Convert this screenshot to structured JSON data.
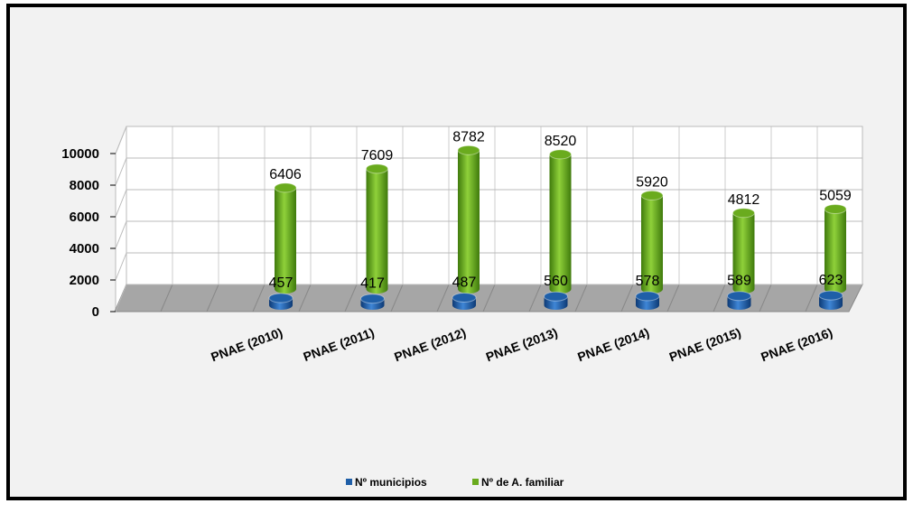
{
  "chart_data": {
    "type": "bar3d",
    "categories": [
      "PNAE (2010)",
      "PNAE (2011)",
      "PNAE (2012)",
      "PNAE (2013)",
      "PNAE (2014)",
      "PNAE (2015)",
      "PNAE (2016)"
    ],
    "series": [
      {
        "name": "Nº municipios",
        "color": "#1f5fa8",
        "values": [
          457,
          417,
          487,
          560,
          578,
          589,
          623
        ]
      },
      {
        "name": "Nº de A. familiar",
        "color": "#6aab1e",
        "values": [
          6406,
          7609,
          8782,
          8520,
          5920,
          4812,
          5059
        ]
      }
    ],
    "ylim": [
      0,
      10000
    ],
    "yticks": [
      0,
      2000,
      4000,
      6000,
      8000,
      10000
    ],
    "grid": true,
    "legend": "bottom"
  }
}
